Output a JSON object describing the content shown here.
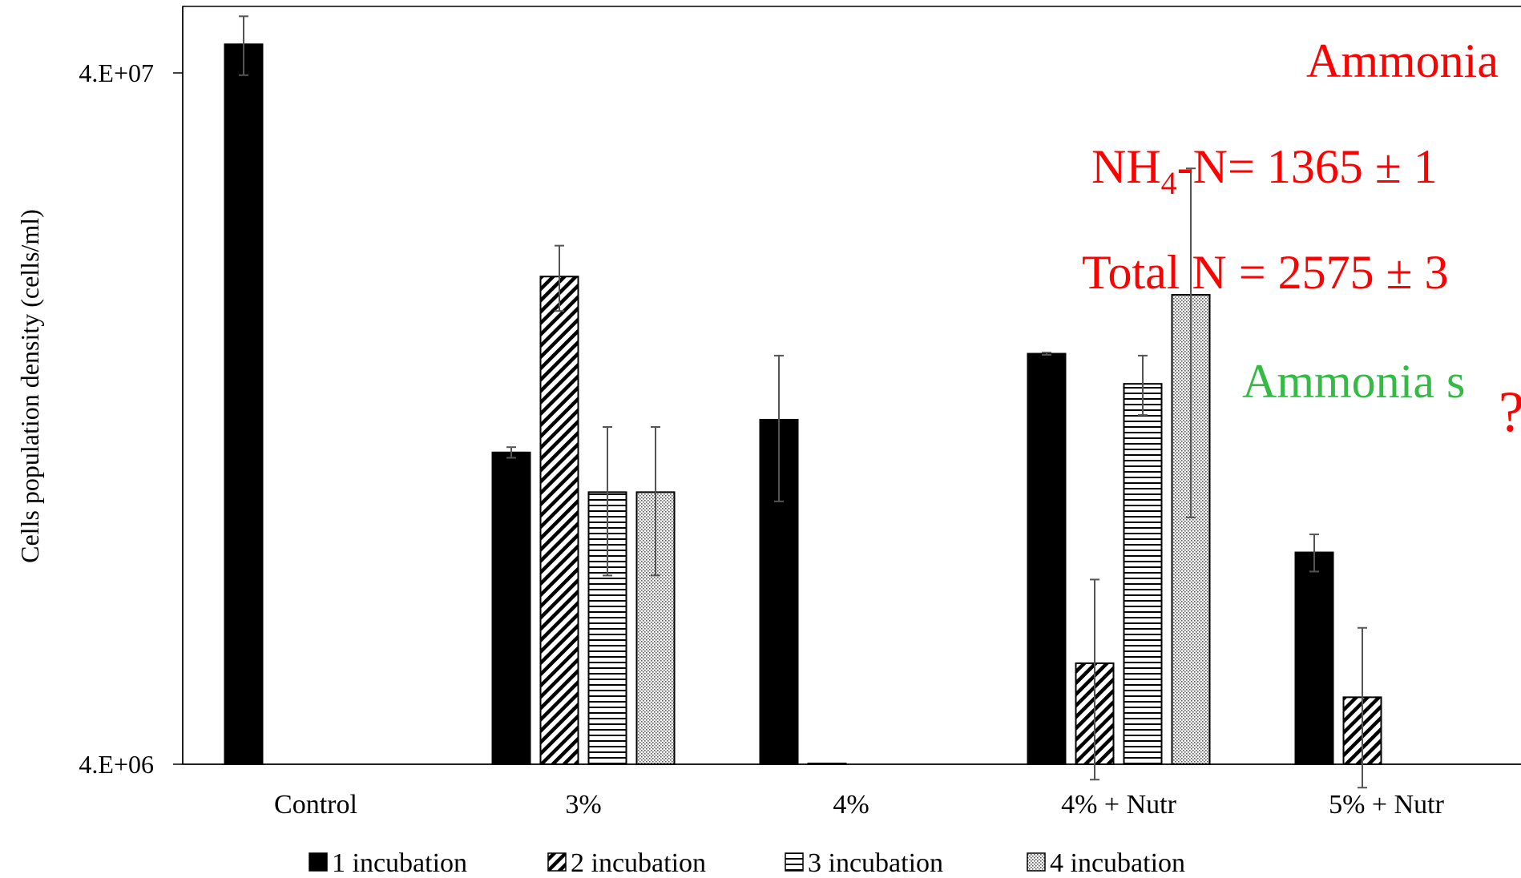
{
  "chart_data": {
    "type": "bar",
    "ylabel": "Cells population density (cells/ml)",
    "yscale": "log",
    "ylim": [
      4000000,
      44000000
    ],
    "yticks": [
      {
        "value": 4000000,
        "label": "4.E+06"
      },
      {
        "value": 40000000,
        "label": "4.E+07"
      }
    ],
    "categories": [
      "Control",
      "3%",
      "4%",
      "4% + Nutr",
      "5% + Nutr"
    ],
    "series": [
      {
        "name": "1 incubation",
        "pattern": "solid",
        "values": [
          44000000,
          11300000,
          12600000,
          15700000,
          8100000
        ],
        "errors": [
          4300000,
          200000,
          3000000,
          60000,
          500000
        ]
      },
      {
        "name": "2 incubation",
        "pattern": "diagonal",
        "values": [
          null,
          20300000,
          4000000,
          5600000,
          5000000
        ],
        "errors": [
          null,
          2200000,
          null,
          1800000,
          1300000
        ]
      },
      {
        "name": "3  incubation",
        "pattern": "horizontal",
        "values": [
          null,
          9900000,
          null,
          14200000,
          null
        ],
        "errors": [
          null,
          2400000,
          null,
          1400000,
          null
        ]
      },
      {
        "name": "4 incubation",
        "pattern": "dotted",
        "values": [
          null,
          9900000,
          null,
          19100000,
          null
        ],
        "errors": [
          null,
          2400000,
          null,
          10000000,
          null
        ]
      }
    ],
    "grid": false,
    "legend_position": "bottom"
  },
  "annotations": {
    "line1": "Ammonia",
    "nh4_prefix": "NH",
    "nh4_sub": "4",
    "nh4_rest": "-N= 1365 ± 1",
    "total_n": "Total N = 2575 ± 3",
    "stripped": "Ammonia s",
    "question_mark": "?"
  },
  "colors": {
    "bar": "#000000",
    "error_bar": "#555555",
    "annotation_red": "#ff0000",
    "annotation_green": "#33bb44"
  }
}
